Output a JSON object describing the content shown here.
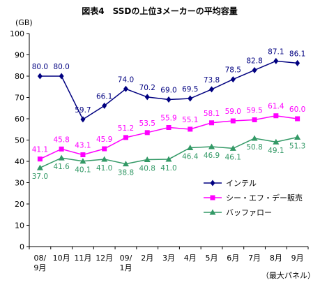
{
  "chart_data": {
    "type": "line",
    "title": "図表4　SSDの上位3メーカーの平均容量",
    "y_unit": "(GB)",
    "footnote": "（最大パネル）",
    "ylim": [
      0,
      100
    ],
    "yticks": [
      0,
      10,
      20,
      30,
      40,
      50,
      60,
      70,
      80,
      90,
      100
    ],
    "grid": false,
    "legend_position": "bottom-right",
    "categories": [
      "08/\n9月",
      "10月",
      "11月",
      "12月",
      "09/\n1月",
      "2月",
      "3月",
      "4月",
      "5月",
      "6月",
      "7月",
      "8月",
      "9月"
    ],
    "series": [
      {
        "name": "インテル",
        "color": "#000080",
        "marker": "diamond",
        "values": [
          80.0,
          80.0,
          59.7,
          66.1,
          74.0,
          70.2,
          69.0,
          69.5,
          73.8,
          78.5,
          82.8,
          87.1,
          86.1
        ],
        "labels": [
          "80.0",
          "80.0",
          "59.7",
          "66.1",
          "74.0",
          "70.2",
          "69.0",
          "69.5",
          "73.8",
          "78.5",
          "82.8",
          "87.1",
          "86.1"
        ],
        "label_color": "#000080"
      },
      {
        "name": "シー・エフ・デー販売",
        "color": "#ff00ff",
        "marker": "square",
        "values": [
          41.1,
          45.8,
          43.1,
          45.9,
          51.2,
          53.5,
          55.9,
          55.1,
          58.1,
          59.0,
          59.5,
          61.4,
          60.0
        ],
        "labels": [
          "41.1",
          "45.8",
          "43.1",
          "45.9",
          "51.2",
          "53.5",
          "55.9",
          "55.1",
          "58.1",
          "59.0",
          "59.5",
          "61.4",
          "60.0"
        ],
        "label_color": "#ff00ff"
      },
      {
        "name": "バッファロー",
        "color": "#339966",
        "marker": "triangle",
        "values": [
          37.0,
          41.6,
          40.1,
          41.0,
          38.8,
          40.8,
          41.0,
          46.4,
          46.9,
          46.1,
          50.8,
          49.1,
          51.3
        ],
        "labels": [
          "37.0",
          "41.6",
          "40.1",
          "41.0",
          "38.8",
          "40.8",
          "41.0",
          "46.4",
          "46.9",
          "46.1",
          "50.8",
          "49.1",
          "51.3"
        ],
        "label_color": "#339966"
      }
    ]
  }
}
